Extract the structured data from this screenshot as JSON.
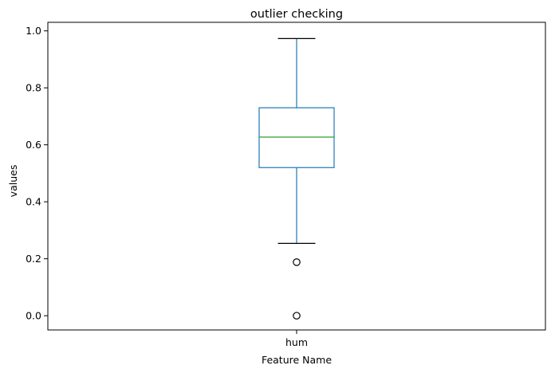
{
  "chart_data": {
    "type": "box",
    "title": "outlier checking",
    "xlabel": "Feature Name",
    "ylabel": "values",
    "categories": [
      "hum"
    ],
    "ylim": [
      -0.05,
      1.03
    ],
    "yticks": [
      0.0,
      0.2,
      0.4,
      0.6,
      0.8,
      1.0
    ],
    "ytick_labels": [
      "0.0",
      "0.2",
      "0.4",
      "0.6",
      "0.8",
      "1.0"
    ],
    "grid": false,
    "series": [
      {
        "name": "hum",
        "whisker_low": 0.254,
        "q1": 0.52,
        "median": 0.627,
        "q3": 0.73,
        "whisker_high": 0.973,
        "outliers": [
          0.188,
          0.0
        ]
      }
    ],
    "colors": {
      "box": "#1f77b4",
      "median": "#2ca02c",
      "caps": "#000000",
      "outlier": "#000000"
    }
  }
}
